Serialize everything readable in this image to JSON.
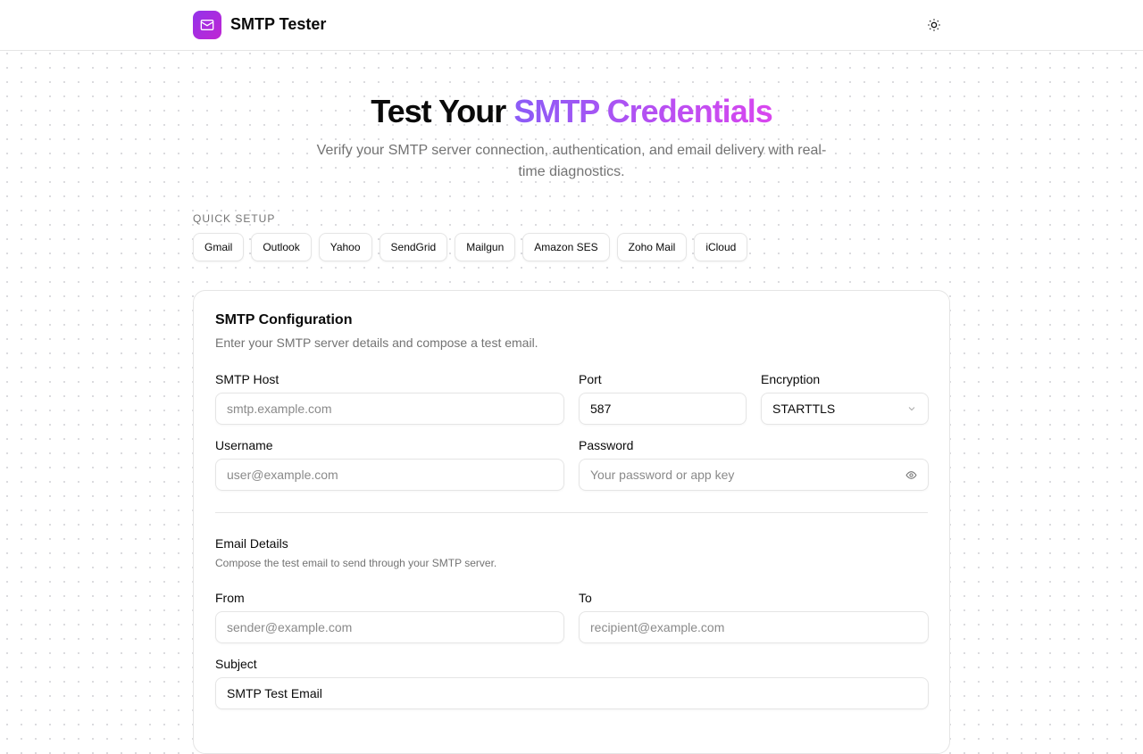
{
  "header": {
    "title": "SMTP Tester",
    "logo_icon": "mail-icon",
    "theme_icon": "sun-icon"
  },
  "hero": {
    "title_plain": "Test Your",
    "title_accent": "SMTP Credentials",
    "subtitle": "Verify your SMTP server connection, authentication, and email delivery with real-time diagnostics."
  },
  "quick_setup": {
    "label": "QUICK SETUP",
    "presets": [
      "Gmail",
      "Outlook",
      "Yahoo",
      "SendGrid",
      "Mailgun",
      "Amazon SES",
      "Zoho Mail",
      "iCloud"
    ]
  },
  "config": {
    "title": "SMTP Configuration",
    "description": "Enter your SMTP server details and compose a test email.",
    "host": {
      "label": "SMTP Host",
      "placeholder": "smtp.example.com",
      "value": ""
    },
    "port": {
      "label": "Port",
      "value": "587"
    },
    "encryption": {
      "label": "Encryption",
      "value": "STARTTLS"
    },
    "username": {
      "label": "Username",
      "placeholder": "user@example.com",
      "value": ""
    },
    "password": {
      "label": "Password",
      "placeholder": "Your password or app key",
      "value": ""
    }
  },
  "email": {
    "title": "Email Details",
    "description": "Compose the test email to send through your SMTP server.",
    "from": {
      "label": "From",
      "placeholder": "sender@example.com"
    },
    "to": {
      "label": "To",
      "placeholder": "recipient@example.com"
    },
    "subject": {
      "label": "Subject",
      "value": "SMTP Test Email"
    }
  }
}
